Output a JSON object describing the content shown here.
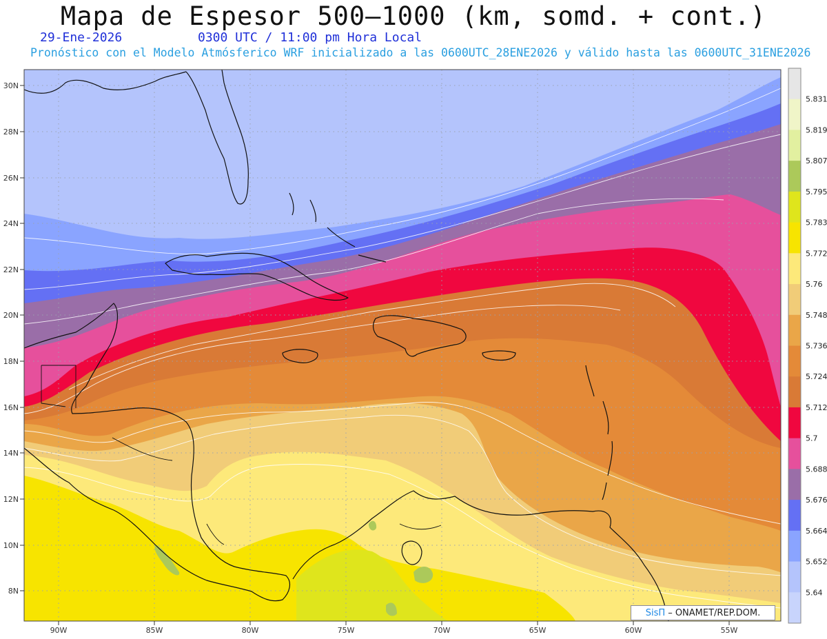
{
  "title": "Mapa de Espesor 500–1000 (km, somd. + cont.)",
  "date_label": "29-Ene-2026",
  "time_label": "0300 UTC / 11:00 pm Hora Local",
  "forecast_label": "Pronóstico con el Modelo Atmósferico WRF inicializado a las 0600UTC_28ENE2026 y válido hasta las  0600UTC_31ENE2026",
  "lat_ticks": [
    "30N",
    "28N",
    "26N",
    "24N",
    "22N",
    "20N",
    "18N",
    "16N",
    "14N",
    "12N",
    "10N",
    "8N"
  ],
  "lon_ticks": [
    "90W",
    "85W",
    "80W",
    "75W",
    "70W",
    "65W",
    "60W",
    "55W"
  ],
  "colorbar": {
    "levels": [
      "5.831",
      "5.819",
      "5.807",
      "5.795",
      "5.783",
      "5.772",
      "5.76",
      "5.748",
      "5.736",
      "5.724",
      "5.712",
      "5.7",
      "5.688",
      "5.676",
      "5.664",
      "5.652",
      "5.64"
    ],
    "colors": [
      "#e6e6e6",
      "#f0f5c8",
      "#e2f0a0",
      "#acc95a",
      "#dfe51c",
      "#f7e400",
      "#fde97a",
      "#f1cc78",
      "#eaa648",
      "#e48a38",
      "#d97a36",
      "#f0073f",
      "#e6509c",
      "#9a6ea8",
      "#6470f4",
      "#8aa4ff",
      "#b4c4fc",
      "#c8d4fc"
    ]
  },
  "credit": {
    "brand": "SisΠ",
    "text": "– ONAMET/REP.DOM."
  }
}
